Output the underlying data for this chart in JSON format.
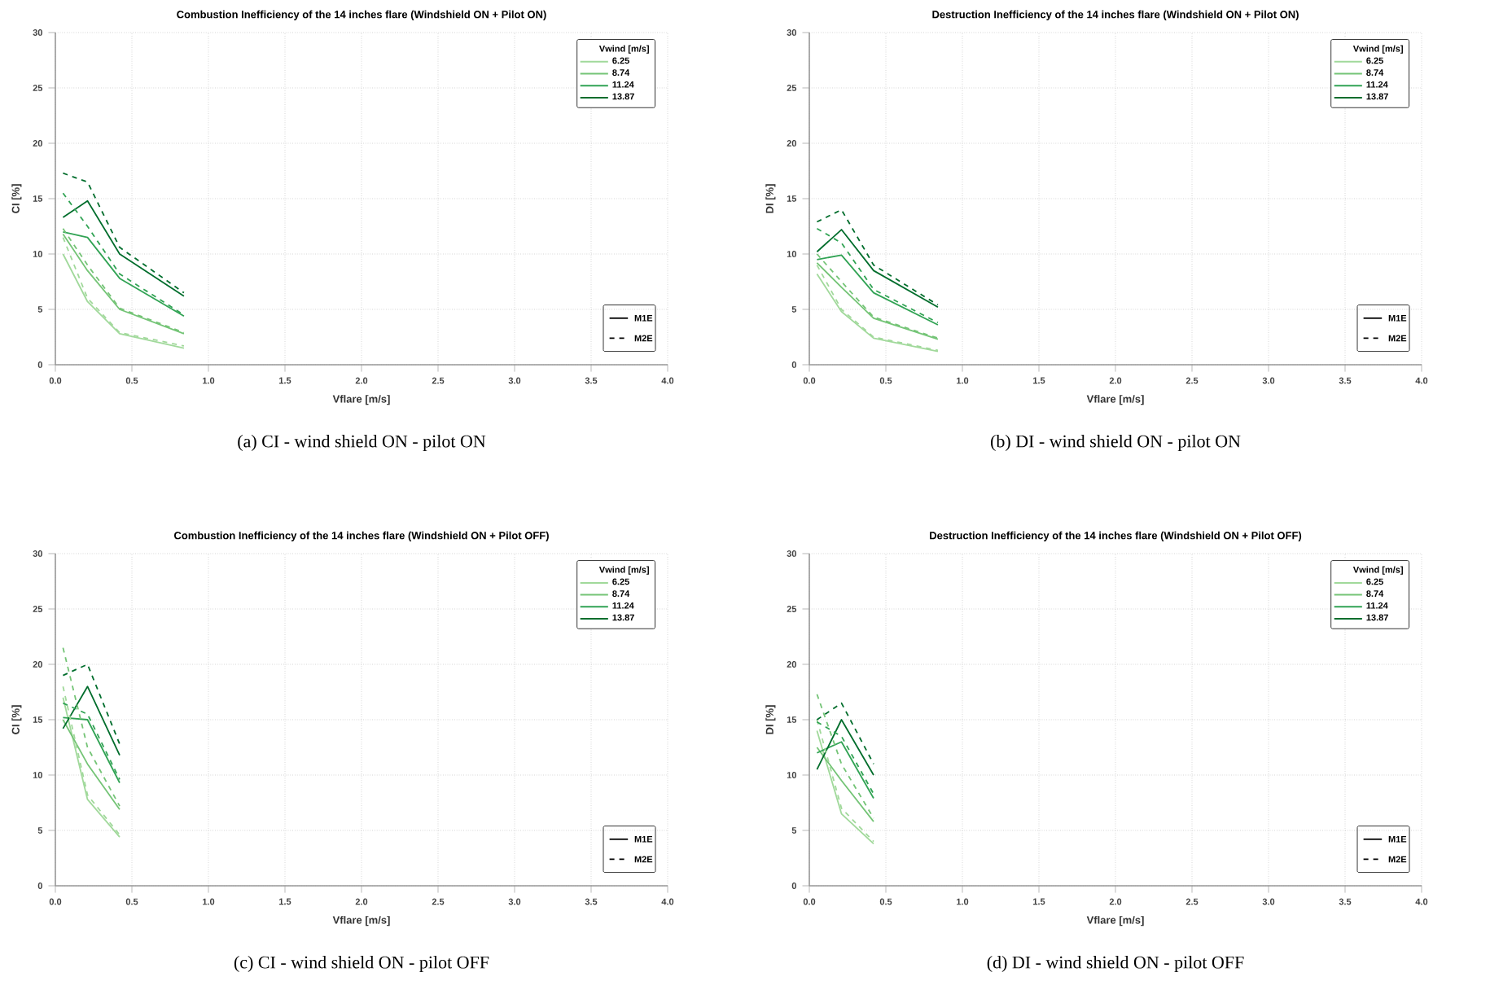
{
  "chart_data": [
    {
      "type": "line",
      "title": "Combustion Inefficiency of the 14 inches flare (Windshield ON + Pilot ON)",
      "xlabel": "Vflare [m/s]",
      "ylabel": "CI [%]",
      "legend_title": "Vwind [m/s]",
      "legend": "top right",
      "grid": true,
      "x": [
        0.05,
        0.21,
        0.42,
        0.84
      ],
      "series": [
        {
          "name": "6.25",
          "color": "#a1d99b",
          "line_style": "solid",
          "values": [
            10,
            5.7,
            2.8,
            1.5
          ]
        },
        {
          "name": "8.74",
          "color": "#74c476",
          "line_style": "solid",
          "values": [
            11.8,
            8.5,
            5.0,
            2.8
          ]
        },
        {
          "name": "11.24",
          "color": "#31a354",
          "line_style": "solid",
          "values": [
            12,
            11.5,
            7.8,
            4.4
          ]
        },
        {
          "name": "13.87",
          "color": "#006d2c",
          "line_style": "solid",
          "values": [
            13.3,
            14.8,
            10.0,
            6.2
          ]
        },
        {
          "color": "#a1d99b",
          "line_style": "dashed",
          "values": [
            11.5,
            6.0,
            2.9,
            1.7
          ]
        },
        {
          "color": "#74c476",
          "line_style": "dashed",
          "values": [
            12.3,
            9.0,
            5.1,
            2.9
          ]
        },
        {
          "color": "#31a354",
          "line_style": "dashed",
          "values": [
            15.5,
            12.5,
            8.2,
            4.5
          ]
        },
        {
          "color": "#006d2c",
          "line_style": "dashed",
          "values": [
            17.3,
            16.5,
            10.6,
            6.5
          ]
        }
      ],
      "xlim": [
        0,
        4
      ],
      "ylim": [
        0,
        30
      ],
      "xticks": [
        {
          "value": 0,
          "label": "0.0"
        },
        {
          "value": 0.5,
          "label": "0.5"
        },
        {
          "value": 1,
          "label": "1.0"
        },
        {
          "value": 1.5,
          "label": "1.5"
        },
        {
          "value": 2,
          "label": "2.0"
        },
        {
          "value": 2.5,
          "label": "2.5"
        },
        {
          "value": 3,
          "label": "3.0"
        },
        {
          "value": 3.5,
          "label": "3.5"
        },
        {
          "value": 4,
          "label": "4.0"
        }
      ],
      "yticks": [
        0,
        5,
        10,
        15,
        20,
        25,
        30
      ],
      "annotations": [
        "M1E",
        "M2E",
        "(a) CI - wind shield ON - pilot ON"
      ]
    },
    {
      "type": "line",
      "title": "Destruction Inefficiency of the 14 inches flare (Windshield ON + Pilot ON)",
      "xlabel": "Vflare [m/s]",
      "ylabel": "DI [%]",
      "legend_title": "Vwind [m/s]",
      "legend": "top right",
      "grid": true,
      "x": [
        0.05,
        0.21,
        0.42,
        0.84
      ],
      "series": [
        {
          "name": "6.25",
          "color": "#a1d99b",
          "line_style": "solid",
          "values": [
            8.2,
            4.8,
            2.4,
            1.2
          ]
        },
        {
          "name": "8.74",
          "color": "#74c476",
          "line_style": "solid",
          "values": [
            9.2,
            7.0,
            4.2,
            2.3
          ]
        },
        {
          "name": "11.24",
          "color": "#31a354",
          "line_style": "solid",
          "values": [
            9.5,
            9.9,
            6.5,
            3.6
          ]
        },
        {
          "name": "13.87",
          "color": "#006d2c",
          "line_style": "solid",
          "values": [
            10.2,
            12.2,
            8.5,
            5.2
          ]
        },
        {
          "color": "#a1d99b",
          "line_style": "dashed",
          "values": [
            9.0,
            5.0,
            2.5,
            1.3
          ]
        },
        {
          "color": "#74c476",
          "line_style": "dashed",
          "values": [
            10,
            7.5,
            4.3,
            2.4
          ]
        },
        {
          "color": "#31a354",
          "line_style": "dashed",
          "values": [
            12.3,
            11,
            6.8,
            3.8
          ]
        },
        {
          "color": "#006d2c",
          "line_style": "dashed",
          "values": [
            12.9,
            14.0,
            9.0,
            5.4
          ]
        }
      ],
      "xlim": [
        0,
        4
      ],
      "ylim": [
        0,
        30
      ],
      "xticks": [
        {
          "value": 0,
          "label": "0.0"
        },
        {
          "value": 0.5,
          "label": "0.5"
        },
        {
          "value": 1,
          "label": "1.0"
        },
        {
          "value": 1.5,
          "label": "1.5"
        },
        {
          "value": 2,
          "label": "2.0"
        },
        {
          "value": 2.5,
          "label": "2.5"
        },
        {
          "value": 3,
          "label": "3.0"
        },
        {
          "value": 3.5,
          "label": "3.5"
        },
        {
          "value": 4,
          "label": "4.0"
        }
      ],
      "yticks": [
        0,
        5,
        10,
        15,
        20,
        25,
        30
      ],
      "annotations": [
        "M1E",
        "M2E",
        "(b) DI - wind shield ON - pilot ON"
      ]
    },
    {
      "type": "line",
      "title": "Combustion Inefficiency of the 14 inches flare (Windshield ON + Pilot OFF)",
      "xlabel": "Vflare [m/s]",
      "ylabel": "CI [%]",
      "legend_title": "Vwind [m/s]",
      "legend": "top right",
      "grid": true,
      "x": [
        0.05,
        0.21,
        0.42
      ],
      "series": [
        {
          "name": "6.25",
          "color": "#a1d99b",
          "line_style": "solid",
          "values": [
            17,
            7.8,
            4.4
          ]
        },
        {
          "name": "8.74",
          "color": "#74c476",
          "line_style": "solid",
          "values": [
            15,
            11,
            6.9
          ]
        },
        {
          "name": "11.24",
          "color": "#31a354",
          "line_style": "solid",
          "values": [
            15.2,
            15.0,
            9.3
          ]
        },
        {
          "name": "13.87",
          "color": "#006d2c",
          "line_style": "solid",
          "values": [
            14.2,
            18,
            11.8
          ]
        },
        {
          "color": "#a1d99b",
          "line_style": "dashed",
          "values": [
            18,
            8.2,
            4.6
          ]
        },
        {
          "color": "#74c476",
          "line_style": "dashed",
          "values": [
            21.5,
            12.5,
            7.2
          ]
        },
        {
          "color": "#31a354",
          "line_style": "dashed",
          "values": [
            16.5,
            15.5,
            9.6
          ]
        },
        {
          "color": "#006d2c",
          "line_style": "dashed",
          "values": [
            19,
            20,
            12.8
          ]
        }
      ],
      "xlim": [
        0,
        4
      ],
      "ylim": [
        0,
        30
      ],
      "xticks": [
        {
          "value": 0,
          "label": "0.0"
        },
        {
          "value": 0.5,
          "label": "0.5"
        },
        {
          "value": 1,
          "label": "1.0"
        },
        {
          "value": 1.5,
          "label": "1.5"
        },
        {
          "value": 2,
          "label": "2.0"
        },
        {
          "value": 2.5,
          "label": "2.5"
        },
        {
          "value": 3,
          "label": "3.0"
        },
        {
          "value": 3.5,
          "label": "3.5"
        },
        {
          "value": 4,
          "label": "4.0"
        }
      ],
      "yticks": [
        0,
        5,
        10,
        15,
        20,
        25,
        30
      ],
      "annotations": [
        "M1E",
        "M2E",
        "(c) CI - wind shield ON - pilot OFF"
      ]
    },
    {
      "type": "line",
      "title": "Destruction Inefficiency of the 14 inches flare (Windshield ON + Pilot OFF)",
      "xlabel": "Vflare [m/s]",
      "ylabel": "DI [%]",
      "legend_title": "Vwind [m/s]",
      "legend": "top right",
      "grid": true,
      "x": [
        0.05,
        0.21,
        0.42
      ],
      "series": [
        {
          "name": "6.25",
          "color": "#a1d99b",
          "line_style": "solid",
          "values": [
            14,
            6.5,
            3.8
          ]
        },
        {
          "name": "8.74",
          "color": "#74c476",
          "line_style": "solid",
          "values": [
            12.5,
            9.5,
            5.8
          ]
        },
        {
          "name": "11.24",
          "color": "#31a354",
          "line_style": "solid",
          "values": [
            12,
            13,
            7.9
          ]
        },
        {
          "name": "13.87",
          "color": "#006d2c",
          "line_style": "solid",
          "values": [
            10.5,
            15,
            10.0
          ]
        },
        {
          "color": "#a1d99b",
          "line_style": "dashed",
          "values": [
            15,
            7,
            4.0
          ]
        },
        {
          "color": "#74c476",
          "line_style": "dashed",
          "values": [
            17.3,
            11,
            6.1
          ]
        },
        {
          "color": "#31a354",
          "line_style": "dashed",
          "values": [
            14.8,
            13.5,
            8.3
          ]
        },
        {
          "color": "#006d2c",
          "line_style": "dashed",
          "values": [
            15,
            16.5,
            11
          ]
        }
      ],
      "xlim": [
        0,
        4
      ],
      "ylim": [
        0,
        30
      ],
      "xticks": [
        {
          "value": 0,
          "label": "0.0"
        },
        {
          "value": 0.5,
          "label": "0.5"
        },
        {
          "value": 1,
          "label": "1.0"
        },
        {
          "value": 1.5,
          "label": "1.5"
        },
        {
          "value": 2,
          "label": "2.0"
        },
        {
          "value": 2.5,
          "label": "2.5"
        },
        {
          "value": 3,
          "label": "3.0"
        },
        {
          "value": 3.5,
          "label": "3.5"
        },
        {
          "value": 4,
          "label": "4.0"
        }
      ],
      "yticks": [
        0,
        5,
        10,
        15,
        20,
        25,
        30
      ],
      "annotations": [
        "M1E",
        "M2E",
        "(d) DI - wind shield ON - pilot OFF"
      ]
    }
  ]
}
